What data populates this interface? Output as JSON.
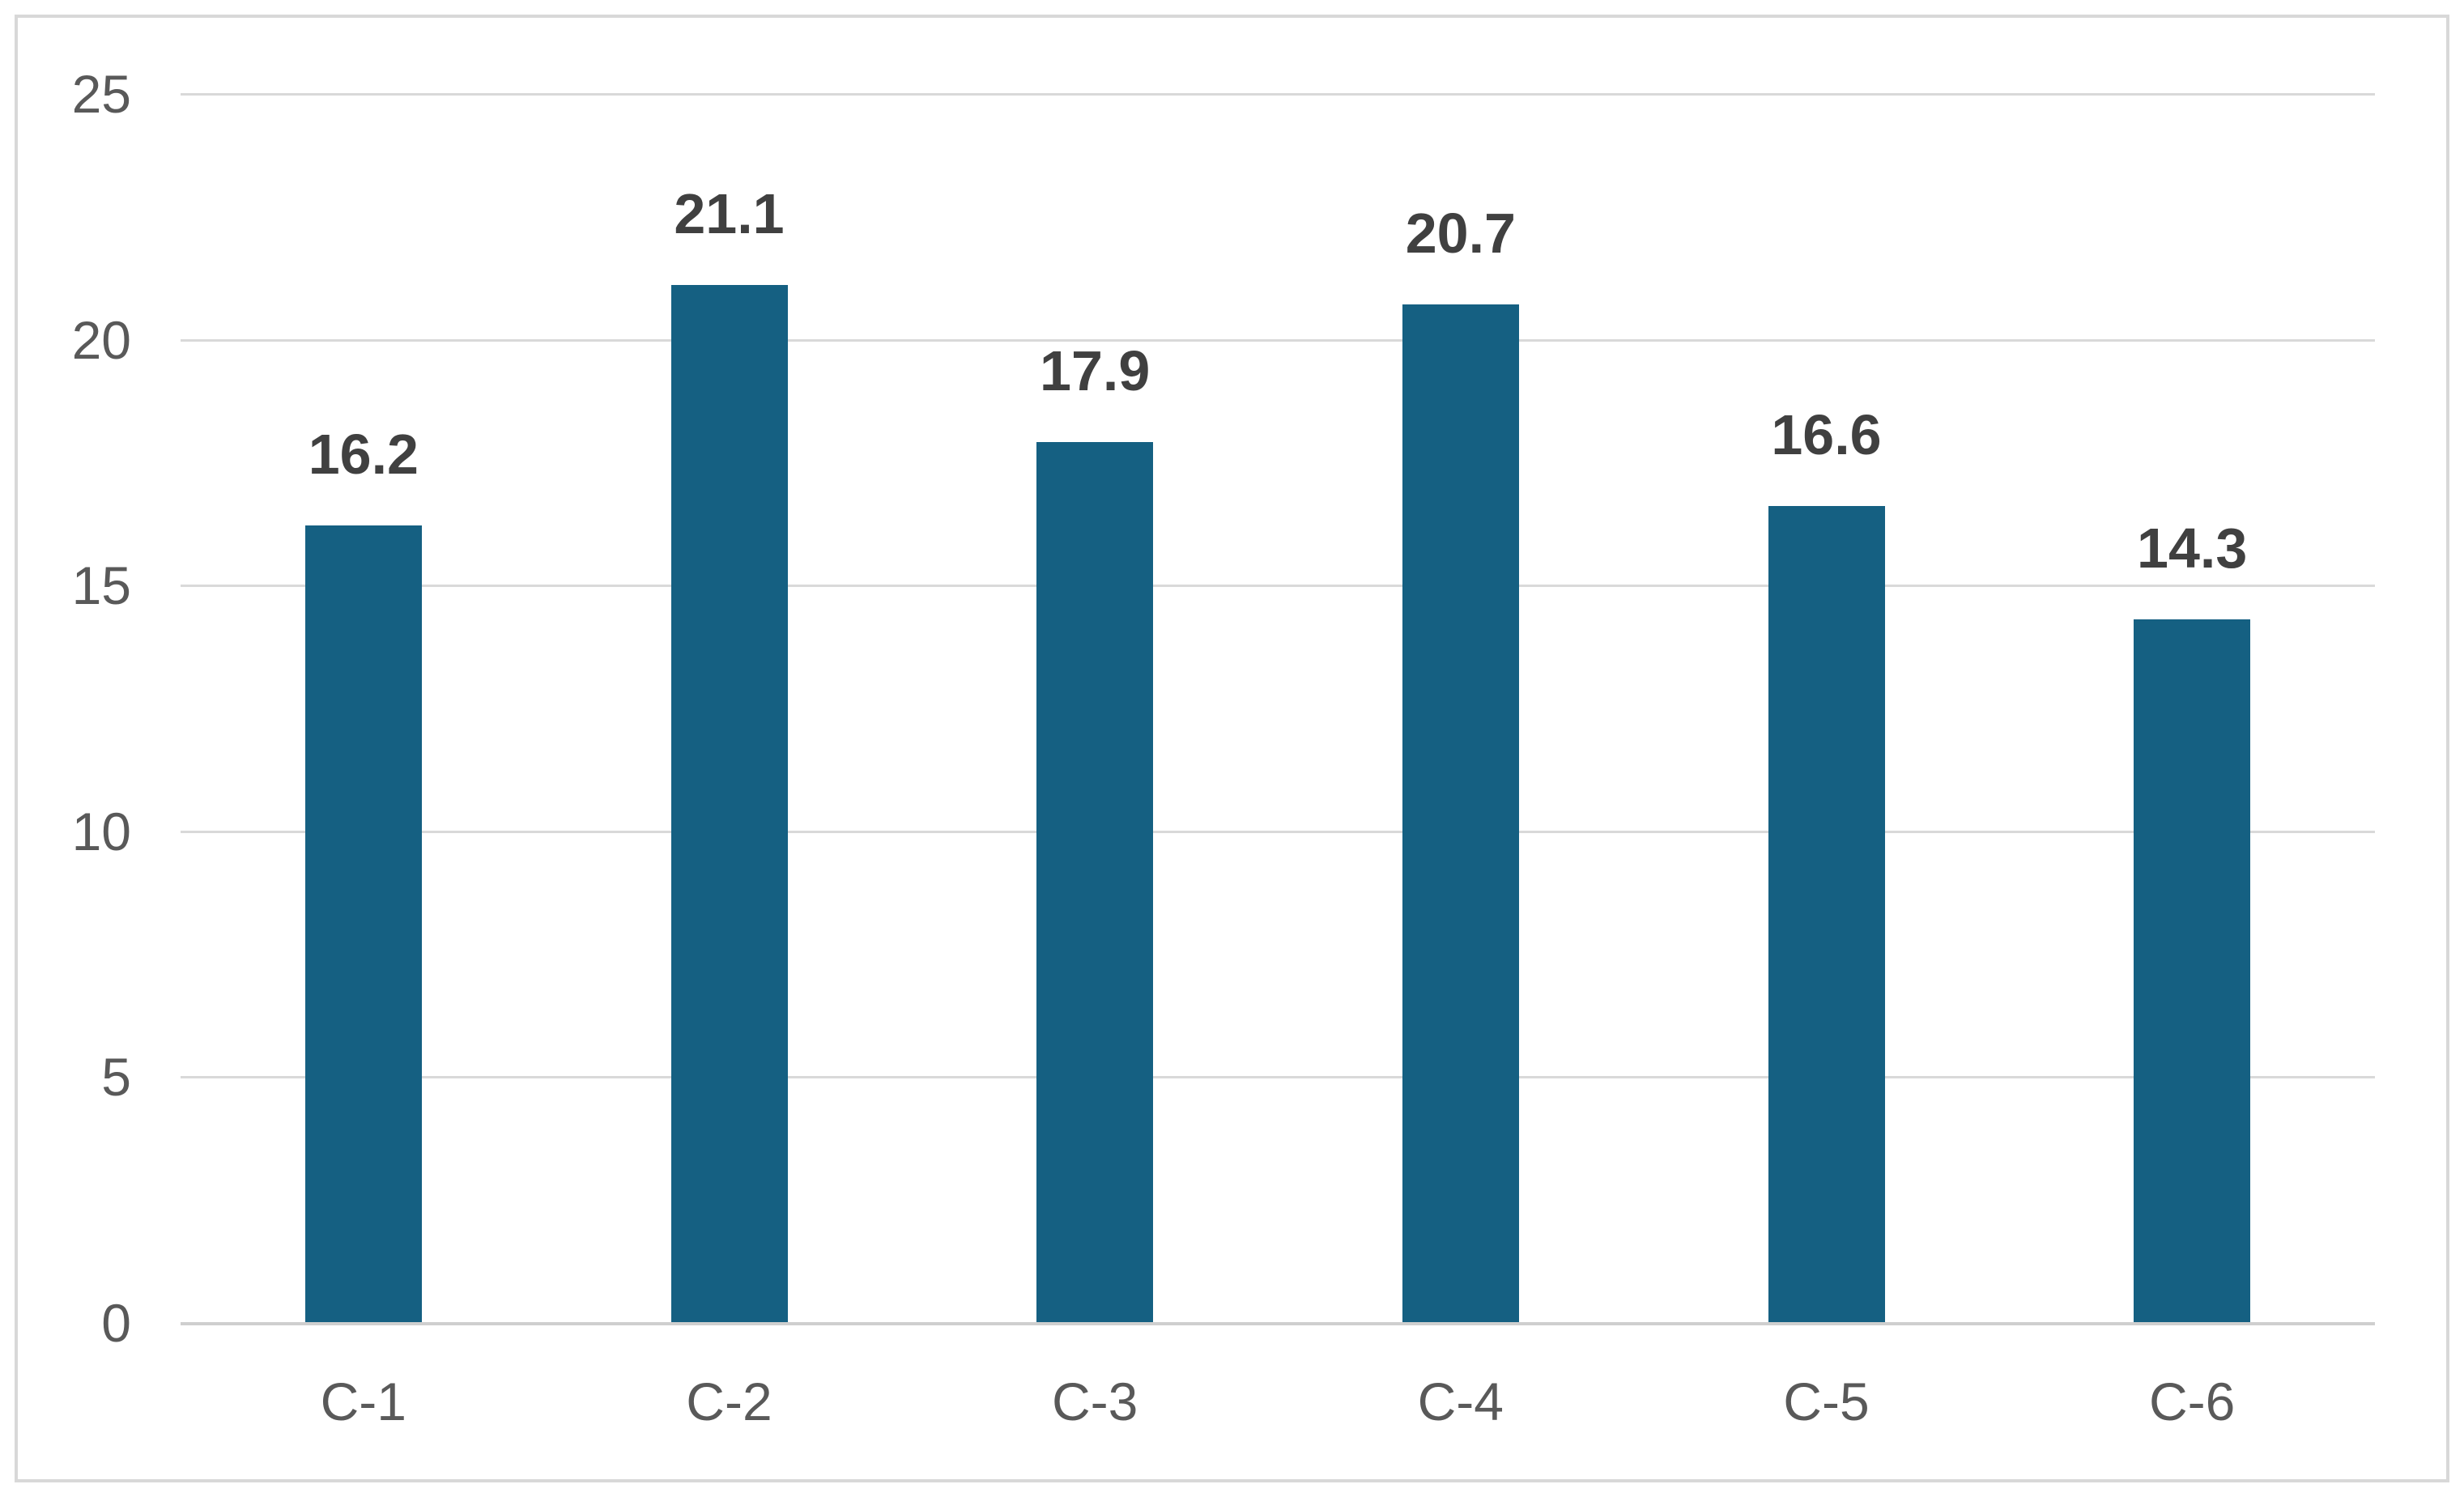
{
  "chart_data": {
    "type": "bar",
    "title": "",
    "xlabel": "",
    "ylabel": "",
    "categories": [
      "C-1",
      "C-2",
      "C-3",
      "C-4",
      "C-5",
      "C-6"
    ],
    "values": [
      16.2,
      21.1,
      17.9,
      20.7,
      16.6,
      14.3
    ],
    "data_labels": [
      "16.2",
      "21.1",
      "17.9",
      "20.7",
      "16.6",
      "14.3"
    ],
    "y_ticks": [
      0,
      5,
      10,
      15,
      20,
      25
    ],
    "y_tick_labels": [
      "0",
      "5",
      "10",
      "15",
      "20",
      "25"
    ],
    "ylim": [
      0,
      25
    ],
    "grid": "horizontal",
    "legend": "none",
    "colors": {
      "bar_fill": "#156082",
      "gridline": "#d9d9d9",
      "axis_baseline": "#cfcfcf",
      "axis_label": "#595959",
      "data_label": "#404040",
      "frame_border": "#d8d8d8",
      "background": "#ffffff"
    }
  }
}
